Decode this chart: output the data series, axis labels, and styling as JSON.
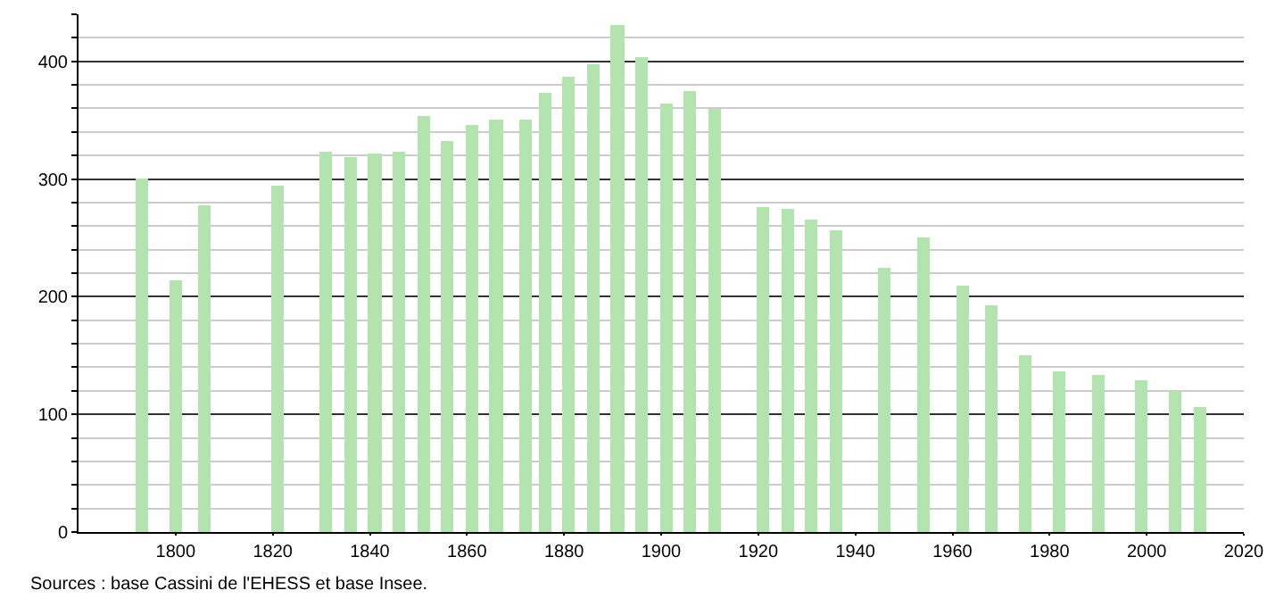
{
  "chart_data": {
    "type": "bar",
    "x": [
      1793,
      1800,
      1806,
      1821,
      1831,
      1836,
      1841,
      1846,
      1851,
      1856,
      1861,
      1866,
      1872,
      1876,
      1881,
      1886,
      1891,
      1896,
      1901,
      1906,
      1911,
      1921,
      1926,
      1931,
      1936,
      1946,
      1954,
      1962,
      1968,
      1975,
      1982,
      1990,
      1999,
      2006,
      2011
    ],
    "values": [
      300,
      214,
      277,
      294,
      323,
      319,
      321,
      323,
      353,
      332,
      346,
      350,
      350,
      373,
      387,
      397,
      431,
      403,
      364,
      375,
      360,
      276,
      274,
      266,
      256,
      224,
      251,
      209,
      193,
      150,
      137,
      133,
      129,
      120,
      106
    ],
    "color": "#b3e3ae",
    "xlim": [
      1780,
      2020
    ],
    "xticks": [
      1800,
      1820,
      1840,
      1860,
      1880,
      1900,
      1920,
      1940,
      1960,
      1980,
      2000,
      2020
    ],
    "ylim": [
      0,
      440
    ],
    "yticks": [
      0,
      {
        "value": 20,
        "label": null
      },
      {
        "value": 40,
        "label": null
      },
      {
        "value": 60,
        "label": null
      },
      {
        "value": 80,
        "label": null
      },
      100,
      {
        "value": 120,
        "label": null
      },
      {
        "value": 140,
        "label": null
      },
      {
        "value": 160,
        "label": null
      },
      {
        "value": 180,
        "label": null
      },
      200,
      {
        "value": 220,
        "label": null
      },
      {
        "value": 240,
        "label": null
      },
      {
        "value": 260,
        "label": null
      },
      {
        "value": 280,
        "label": null
      },
      300,
      {
        "value": 320,
        "label": null
      },
      {
        "value": 340,
        "label": null
      },
      {
        "value": 360,
        "label": null
      },
      {
        "value": 380,
        "label": null
      },
      400,
      {
        "value": 420,
        "label": null
      },
      {
        "value": 440,
        "label": null
      }
    ],
    "grid": "y",
    "annotations": [
      "Sources : base Cassini de l'EHESS et base Insee."
    ]
  }
}
